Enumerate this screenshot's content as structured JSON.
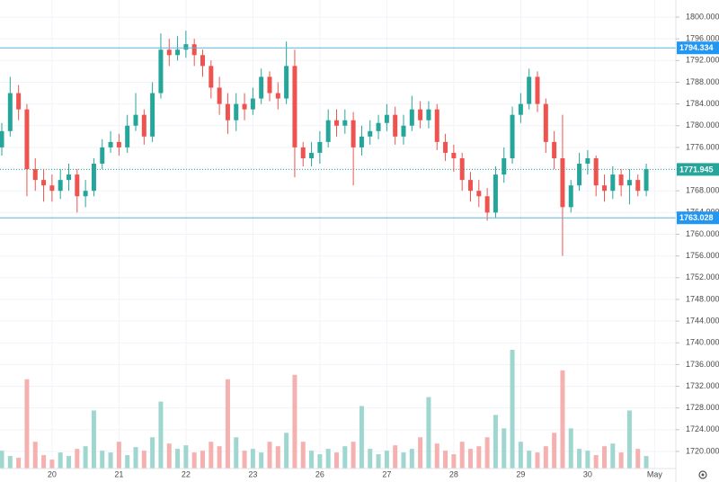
{
  "chart_data": {
    "type": "candlestick",
    "categories": [
      null,
      null,
      null,
      null,
      null,
      null,
      "20",
      null,
      null,
      null,
      null,
      null,
      null,
      null,
      "21",
      null,
      null,
      null,
      null,
      null,
      null,
      null,
      "22",
      null,
      null,
      null,
      null,
      null,
      null,
      null,
      "23",
      null,
      null,
      null,
      null,
      null,
      null,
      null,
      "26",
      null,
      null,
      null,
      null,
      null,
      null,
      null,
      "27",
      null,
      null,
      null,
      null,
      null,
      null,
      null,
      "28",
      null,
      null,
      null,
      null,
      null,
      null,
      null,
      "29",
      null,
      null,
      null,
      null,
      null,
      null,
      null,
      "30",
      null,
      null,
      null,
      null,
      null,
      null,
      null,
      "May"
    ],
    "open": [
      1776,
      1779,
      1786,
      1783,
      1772,
      1770,
      1769,
      1768,
      1770,
      1771,
      1767,
      1768,
      1773,
      1776,
      1777,
      1776,
      1780,
      1782,
      1778,
      1786,
      1794,
      1793,
      1794,
      1795,
      1793,
      1791,
      1787,
      1784,
      1781,
      1784,
      1783,
      1785,
      1789,
      1786,
      1785,
      1791,
      1776,
      1774,
      1775,
      1777,
      1781,
      1780,
      1781,
      1776,
      1778,
      1779,
      1780.5,
      1782,
      1778,
      1780,
      1783,
      1781,
      1783,
      1777,
      1775,
      1774,
      1770,
      1768,
      1767,
      1764,
      1771,
      1774,
      1782,
      1784,
      1789,
      1784,
      1777,
      1774,
      1765,
      1769,
      1773,
      1774,
      1769,
      1768,
      1771,
      1769,
      1770,
      1768,
      null
    ],
    "high": [
      1780.5,
      1789,
      1787.5,
      1784,
      1774,
      1772,
      1771,
      1772,
      1773,
      1772,
      1770,
      1774,
      1777.5,
      1779,
      1778.5,
      1782,
      1786,
      1783,
      1788,
      1797,
      1796,
      1796.5,
      1797.5,
      1796,
      1794,
      1792,
      1789,
      1786,
      1786,
      1786,
      1787,
      1790.5,
      1790,
      1788,
      1795.5,
      1794,
      1777,
      1777,
      1779,
      1783,
      1783,
      1783,
      1782.5,
      1780,
      1781,
      1782,
      1784,
      1783.5,
      1782,
      1785.5,
      1784.5,
      1784.5,
      1784,
      1778.5,
      1776.5,
      1775,
      1771.5,
      1770,
      1768.5,
      1772.5,
      1776,
      1783.5,
      1786,
      1790.5,
      1790,
      1785,
      1779,
      1782,
      1770,
      1775,
      1775.5,
      1774.5,
      1771,
      1772.5,
      1772,
      1772,
      1771,
      1773,
      null
    ],
    "low": [
      1774.5,
      1778,
      1781,
      1767,
      1768,
      1766,
      1766,
      1766.5,
      1768,
      1764,
      1765,
      1767,
      1772,
      1775,
      1774.5,
      1775,
      1779,
      1776.5,
      1777,
      1785,
      1791,
      1792,
      1792.5,
      1791,
      1789,
      1785,
      1782,
      1778.5,
      1779,
      1781,
      1782,
      1784,
      1784.5,
      1783,
      1784,
      1770.5,
      1772.5,
      1772.5,
      1773,
      1776,
      1778,
      1778.5,
      1769,
      1774.5,
      1776.5,
      1777.5,
      1779,
      1776.5,
      1776.5,
      1779,
      1779.5,
      1779.5,
      1775.5,
      1773.5,
      1771.5,
      1768,
      1766,
      1765,
      1762.5,
      1763,
      1769.5,
      1773,
      1780.5,
      1783,
      1782.5,
      1775,
      1772,
      1756,
      1764,
      1768,
      1771,
      1767,
      1766,
      1766.5,
      1767,
      1765.5,
      1767,
      1767,
      null
    ],
    "close": [
      1779,
      1786,
      1783,
      1772,
      1770,
      1769,
      1768,
      1770,
      1771,
      1767,
      1768,
      1773,
      1776,
      1777,
      1776,
      1780,
      1782,
      1778,
      1786,
      1794,
      1793,
      1794,
      1795,
      1793,
      1791,
      1787,
      1784,
      1781,
      1784,
      1783,
      1785,
      1789,
      1786,
      1785,
      1791,
      1776,
      1774,
      1775,
      1777,
      1781,
      1780,
      1781,
      1776,
      1778,
      1779,
      1780.5,
      1782,
      1778,
      1780,
      1783,
      1781,
      1783,
      1777,
      1775,
      1774,
      1770,
      1768,
      1767,
      1764,
      1771,
      1774,
      1782,
      1784,
      1789,
      1784,
      1777,
      1774,
      1765,
      1769,
      1773,
      1774,
      1769,
      1768,
      1771,
      1769,
      1770,
      1768,
      1772,
      null
    ],
    "volume": [
      20,
      14,
      12,
      100,
      30,
      15,
      10,
      18,
      14,
      22,
      25,
      65,
      20,
      18,
      30,
      15,
      24,
      20,
      35,
      75,
      28,
      22,
      26,
      18,
      20,
      30,
      25,
      100,
      35,
      20,
      22,
      18,
      30,
      25,
      40,
      105,
      30,
      20,
      16,
      22,
      18,
      25,
      30,
      70,
      22,
      16,
      20,
      26,
      18,
      22,
      35,
      80,
      28,
      20,
      16,
      30,
      22,
      25,
      35,
      60,
      45,
      133,
      30,
      20,
      18,
      25,
      40,
      110,
      45,
      22,
      20,
      15,
      25,
      28,
      18,
      65,
      22,
      14,
      null
    ],
    "up_color": "#26a69a",
    "down_color": "#ef5350",
    "volume_up_color": "#9fd6cf",
    "volume_down_color": "#f4b1b0",
    "ylim": [
      1716.85,
      1803.15
    ],
    "yticks": [
      {
        "value": 1720,
        "label": "1720.000"
      },
      {
        "value": 1724,
        "label": "1724.000"
      },
      {
        "value": 1728,
        "label": "1728.000"
      },
      {
        "value": 1732,
        "label": "1732.000"
      },
      {
        "value": 1736,
        "label": "1736.000"
      },
      {
        "value": 1740,
        "label": "1740.000"
      },
      {
        "value": 1744,
        "label": "1744.000"
      },
      {
        "value": 1748,
        "label": "1748.000"
      },
      {
        "value": 1752,
        "label": "1752.000"
      },
      {
        "value": 1756,
        "label": "1756.000"
      },
      {
        "value": 1760,
        "label": "1760.000"
      },
      {
        "value": 1764,
        "label": "1764.000"
      },
      {
        "value": 1768,
        "label": "1768.000"
      },
      {
        "value": 1772,
        "label": "1772.000"
      },
      {
        "value": 1776,
        "label": "1776.000"
      },
      {
        "value": 1780,
        "label": "1780.000"
      },
      {
        "value": 1784,
        "label": "1784.000"
      },
      {
        "value": 1788,
        "label": "1788.000"
      },
      {
        "value": 1792,
        "label": "1792.000"
      },
      {
        "value": 1796,
        "label": "1796.000"
      },
      {
        "value": 1800,
        "label": "1800.000"
      }
    ],
    "grid": true,
    "price_lines": [
      {
        "value": 1794.334,
        "color": "#5bb3dc",
        "label_color": "#2196f3",
        "style": "solid"
      },
      {
        "value": 1771.945,
        "color": "#26a69a",
        "label_color": "#26a69a",
        "style": "dotted"
      },
      {
        "value": 1763.028,
        "color": "#5bb3dc",
        "label_color": "#2196f3",
        "style": "solid"
      }
    ]
  }
}
